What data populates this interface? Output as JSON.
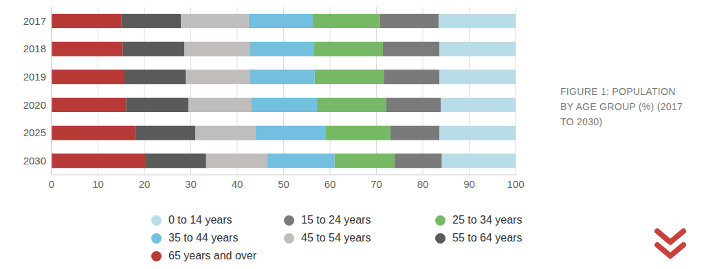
{
  "chart_data": {
    "type": "bar",
    "orientation": "horizontal",
    "stacked": true,
    "title": "FIGURE 1: POPULATION BY AGE GROUP (%) (2017 TO 2030)",
    "categories": [
      "2017",
      "2018",
      "2019",
      "2020",
      "2025",
      "2030"
    ],
    "xlim": [
      0,
      100
    ],
    "xticks": [
      0,
      10,
      20,
      30,
      40,
      50,
      60,
      70,
      80,
      90,
      100
    ],
    "grid": true,
    "legend": "bottom",
    "series": [
      {
        "name": "65 years and over",
        "color": "#b83a36",
        "values": [
          15.0,
          15.3,
          15.7,
          16.1,
          18.2,
          20.3
        ]
      },
      {
        "name": "55 to 64 years",
        "color": "#5a5a5a",
        "values": [
          12.9,
          13.3,
          13.2,
          13.4,
          12.8,
          13.0
        ]
      },
      {
        "name": "45 to 54 years",
        "color": "#c0bdbd",
        "values": [
          14.6,
          14.1,
          13.8,
          13.5,
          13.0,
          13.2
        ]
      },
      {
        "name": "35 to 44 years",
        "color": "#72bfe0",
        "values": [
          13.8,
          13.9,
          14.0,
          14.2,
          15.0,
          14.5
        ]
      },
      {
        "name": "25 to 34 years",
        "color": "#76b964",
        "values": [
          14.5,
          14.8,
          15.0,
          14.9,
          14.0,
          12.9
        ]
      },
      {
        "name": "15 to 24 years",
        "color": "#7a7a7a",
        "values": [
          12.6,
          12.2,
          11.9,
          11.8,
          10.6,
          10.2
        ]
      },
      {
        "name": "0 to 14 years",
        "color": "#b8dde8",
        "values": [
          16.6,
          16.4,
          16.4,
          16.1,
          16.4,
          15.9
        ]
      }
    ]
  }
}
